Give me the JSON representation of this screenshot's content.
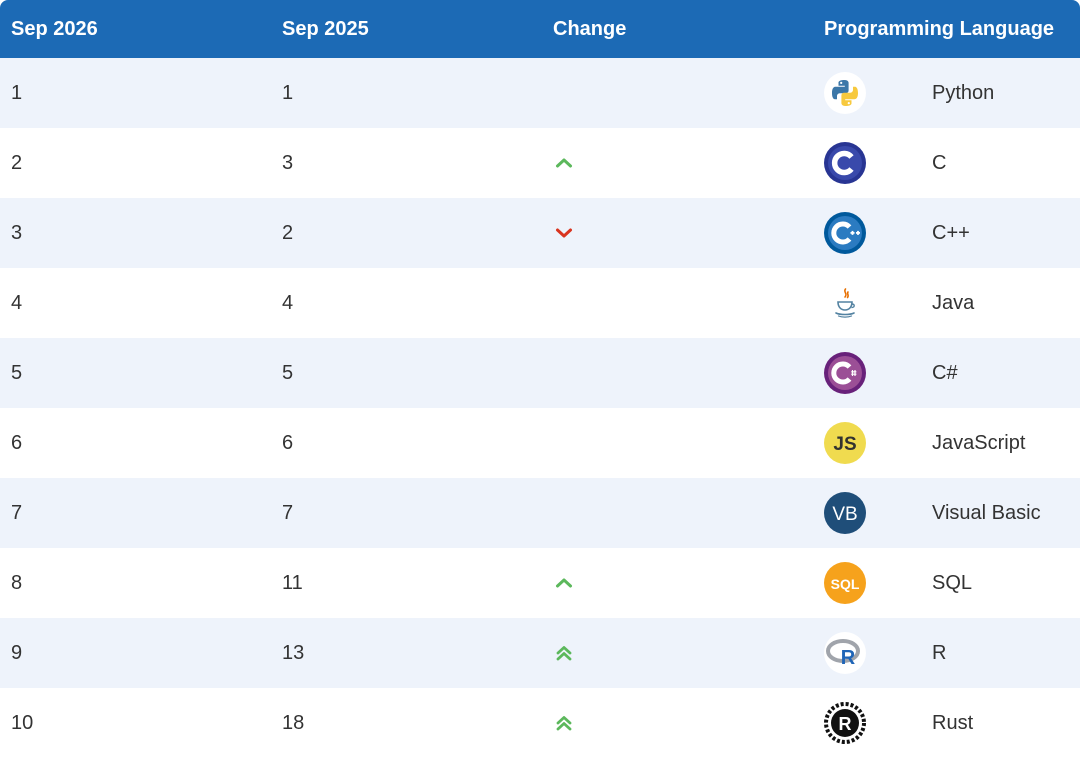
{
  "header": {
    "col1": "Sep 2026",
    "col2": "Sep 2025",
    "col3": "Change",
    "col4": "Programming Language"
  },
  "rows": [
    {
      "rank_now": "1",
      "rank_prev": "1",
      "change": "none",
      "language": "Python",
      "icon": "python-logo-icon"
    },
    {
      "rank_now": "2",
      "rank_prev": "3",
      "change": "up",
      "language": "C",
      "icon": "c-logo-icon"
    },
    {
      "rank_now": "3",
      "rank_prev": "2",
      "change": "down",
      "language": "C++",
      "icon": "cpp-logo-icon"
    },
    {
      "rank_now": "4",
      "rank_prev": "4",
      "change": "none",
      "language": "Java",
      "icon": "java-logo-icon"
    },
    {
      "rank_now": "5",
      "rank_prev": "5",
      "change": "none",
      "language": "C#",
      "icon": "csharp-logo-icon"
    },
    {
      "rank_now": "6",
      "rank_prev": "6",
      "change": "none",
      "language": "JavaScript",
      "icon": "javascript-logo-icon",
      "logo_text": "JS"
    },
    {
      "rank_now": "7",
      "rank_prev": "7",
      "change": "none",
      "language": "Visual Basic",
      "icon": "visual-basic-logo-icon",
      "logo_text": "VB"
    },
    {
      "rank_now": "8",
      "rank_prev": "11",
      "change": "up",
      "language": "SQL",
      "icon": "sql-logo-icon",
      "logo_text": "SQL"
    },
    {
      "rank_now": "9",
      "rank_prev": "13",
      "change": "up-fast",
      "language": "R",
      "icon": "r-logo-icon",
      "logo_text": "R"
    },
    {
      "rank_now": "10",
      "rank_prev": "18",
      "change": "up-fast",
      "language": "Rust",
      "icon": "rust-logo-icon",
      "logo_text": "R"
    }
  ],
  "colors": {
    "header_bg": "#1c6ab5",
    "row_alt_bg": "#eef3fb",
    "up": "#5cb85c",
    "down": "#d9341f"
  }
}
